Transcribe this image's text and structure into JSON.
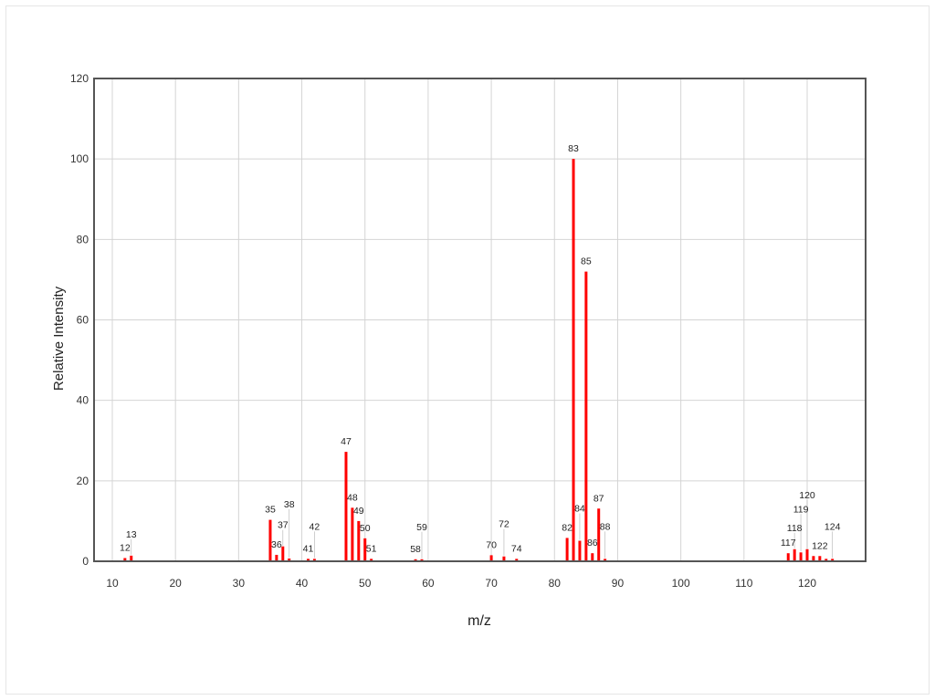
{
  "chart_data": {
    "type": "bar",
    "title": "",
    "xlabel": "m/z",
    "ylabel": "Relative Intensity",
    "xlim": [
      7,
      130
    ],
    "ylim": [
      0,
      120
    ],
    "xticks": [
      10,
      20,
      30,
      40,
      50,
      60,
      70,
      80,
      90,
      100,
      110,
      120
    ],
    "yticks": [
      0,
      20,
      40,
      60,
      80,
      100,
      120
    ],
    "grid": true,
    "bar_color": "#ff0000",
    "peaks": [
      {
        "x": 12,
        "y": 0.8,
        "label": "12"
      },
      {
        "x": 13,
        "y": 1.4,
        "label": "13"
      },
      {
        "x": 35,
        "y": 10.3,
        "label": "35"
      },
      {
        "x": 36,
        "y": 1.6,
        "label": "36"
      },
      {
        "x": 37,
        "y": 3.7,
        "label": "37"
      },
      {
        "x": 38,
        "y": 0.7,
        "label": "38"
      },
      {
        "x": 41,
        "y": 0.6,
        "label": "41"
      },
      {
        "x": 42,
        "y": 0.6,
        "label": "42"
      },
      {
        "x": 47,
        "y": 27.2,
        "label": "47"
      },
      {
        "x": 48,
        "y": 13.3,
        "label": "48"
      },
      {
        "x": 49,
        "y": 10.0,
        "label": "49"
      },
      {
        "x": 50,
        "y": 5.7,
        "label": "50"
      },
      {
        "x": 51,
        "y": 0.6,
        "label": "51"
      },
      {
        "x": 58,
        "y": 0.5,
        "label": "58"
      },
      {
        "x": 59,
        "y": 0.5,
        "label": "59"
      },
      {
        "x": 70,
        "y": 1.5,
        "label": "70"
      },
      {
        "x": 72,
        "y": 1.2,
        "label": "72"
      },
      {
        "x": 74,
        "y": 0.6,
        "label": "74"
      },
      {
        "x": 82,
        "y": 5.8,
        "label": "82"
      },
      {
        "x": 83,
        "y": 100,
        "label": "83"
      },
      {
        "x": 84,
        "y": 5.1,
        "label": "84"
      },
      {
        "x": 85,
        "y": 72,
        "label": "85"
      },
      {
        "x": 86,
        "y": 2.0,
        "label": "86"
      },
      {
        "x": 87,
        "y": 13.1,
        "label": "87"
      },
      {
        "x": 88,
        "y": 0.6,
        "label": "88"
      },
      {
        "x": 117,
        "y": 2.0,
        "label": "117"
      },
      {
        "x": 118,
        "y": 3.0,
        "label": "118"
      },
      {
        "x": 119,
        "y": 2.2,
        "label": "119"
      },
      {
        "x": 120,
        "y": 3.0,
        "label": "120"
      },
      {
        "x": 121,
        "y": 1.3,
        "label": ""
      },
      {
        "x": 122,
        "y": 1.3,
        "label": "122"
      },
      {
        "x": 123,
        "y": 0.6,
        "label": ""
      },
      {
        "x": 124,
        "y": 0.6,
        "label": "124"
      }
    ]
  }
}
